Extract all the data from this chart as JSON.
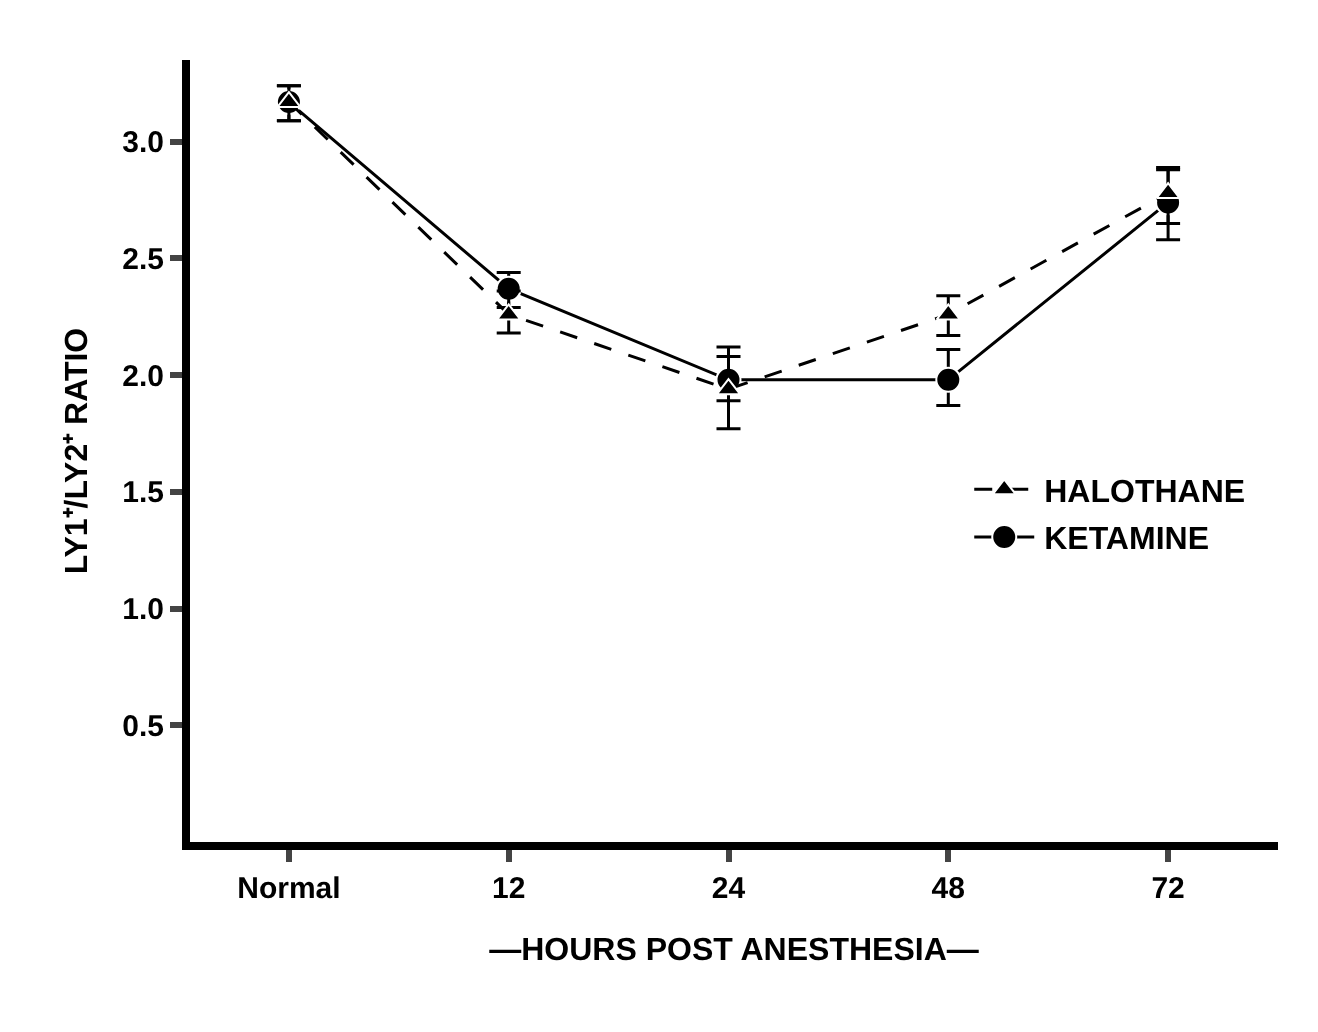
{
  "chart_data": {
    "type": "line",
    "xlabel": "—HOURS POST ANESTHESIA—",
    "ylabel": "LY1⁺/LY2⁺ RATIO",
    "categories": [
      "Normal",
      "12",
      "24",
      "48",
      "72"
    ],
    "series": [
      {
        "name": "HALOTHANE",
        "color": "#000000",
        "marker": "triangle",
        "line_style": "dashed",
        "values": [
          3.17,
          2.26,
          1.94,
          2.26,
          2.78
        ],
        "errors": [
          [
            3.09,
            3.24
          ],
          [
            2.18,
            2.36
          ],
          [
            1.77,
            2.12
          ],
          [
            2.17,
            2.34
          ],
          [
            2.65,
            2.89
          ]
        ]
      },
      {
        "name": "KETAMINE",
        "color": "#000000",
        "marker": "circle",
        "line_style": "solid",
        "values": [
          3.17,
          2.37,
          1.98,
          1.98,
          2.74
        ],
        "errors": [
          [
            3.09,
            3.24
          ],
          [
            2.29,
            2.44
          ],
          [
            1.89,
            2.08
          ],
          [
            1.87,
            2.11
          ],
          [
            2.58,
            2.88
          ]
        ]
      }
    ],
    "ylim": [
      0,
      3.35
    ],
    "yticks": [
      0.5,
      {
        "value": 1,
        "label": "1.0"
      },
      1.5,
      {
        "value": 2,
        "label": "2.0"
      },
      2.5,
      {
        "value": 3,
        "label": "3.0"
      }
    ],
    "grid": false,
    "legend": "right"
  }
}
